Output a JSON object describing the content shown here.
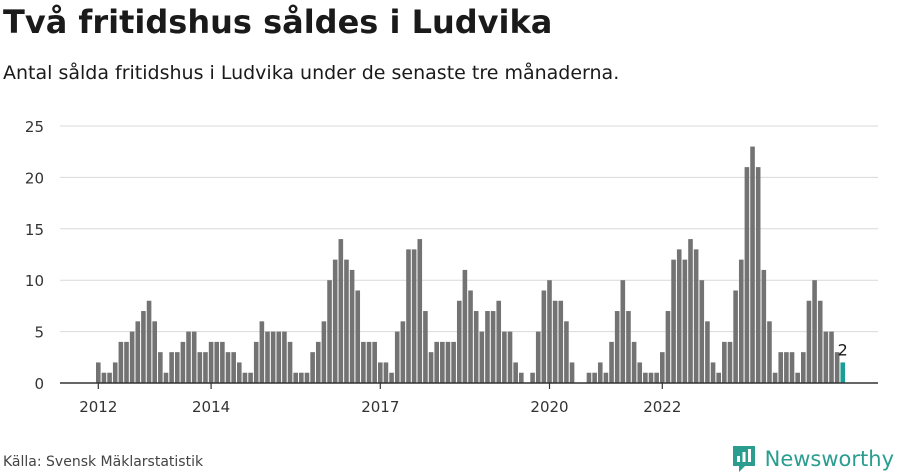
{
  "header": {
    "title": "Två fritidshus såldes i Ludvika",
    "subtitle": "Antal sålda fritidshus i Ludvika under de senaste tre månaderna."
  },
  "footer": {
    "source": "Källa: Svensk Mäklarstatistik",
    "brand": "Newsworthy",
    "brand_icon": "newsworthy-chart-logo-icon"
  },
  "colors": {
    "bar": "#737373",
    "highlight": "#1a9e96",
    "grid": "#d9d9d9",
    "axis": "#333333",
    "brand": "#2a9d8f"
  },
  "chart_data": {
    "type": "bar",
    "ylim": [
      0,
      25
    ],
    "yticks": [
      0,
      5,
      10,
      15,
      20,
      25
    ],
    "grid": true,
    "xlabel": "",
    "ylabel": "",
    "xtick_labels": [
      {
        "label": "2012",
        "index": 0
      },
      {
        "label": "2014",
        "index": 20
      },
      {
        "label": "2017",
        "index": 50
      },
      {
        "label": "2020",
        "index": 80
      },
      {
        "label": "2022",
        "index": 100
      }
    ],
    "values": [
      2,
      1,
      1,
      2,
      4,
      4,
      5,
      6,
      7,
      8,
      6,
      3,
      1,
      3,
      3,
      4,
      5,
      5,
      3,
      3,
      4,
      4,
      4,
      3,
      3,
      2,
      1,
      1,
      4,
      6,
      5,
      5,
      5,
      5,
      4,
      1,
      1,
      1,
      3,
      4,
      6,
      10,
      12,
      14,
      12,
      11,
      9,
      4,
      4,
      4,
      2,
      2,
      1,
      5,
      6,
      13,
      13,
      14,
      7,
      3,
      4,
      4,
      4,
      4,
      8,
      11,
      9,
      7,
      5,
      7,
      7,
      8,
      5,
      5,
      2,
      1,
      0,
      1,
      5,
      9,
      10,
      8,
      8,
      6,
      2,
      0,
      0,
      1,
      1,
      2,
      1,
      4,
      7,
      10,
      7,
      4,
      2,
      1,
      1,
      1,
      3,
      7,
      12,
      13,
      12,
      14,
      13,
      10,
      6,
      2,
      1,
      4,
      4,
      9,
      12,
      21,
      23,
      21,
      11,
      6,
      1,
      3,
      3,
      3,
      1,
      3,
      8,
      10,
      8,
      5,
      5,
      3,
      2
    ],
    "highlight_last": true,
    "last_value_label": "2"
  }
}
